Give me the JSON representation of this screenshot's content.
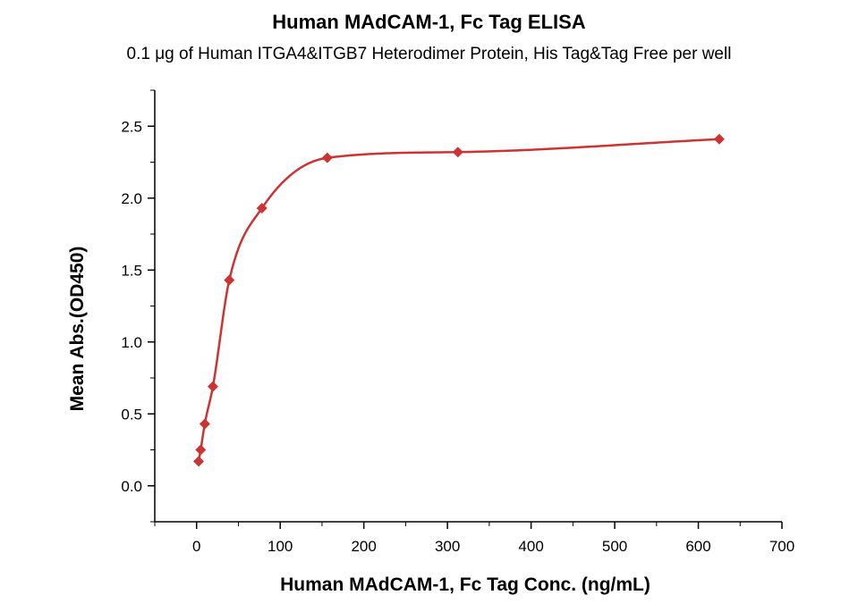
{
  "chart_data": {
    "type": "scatter",
    "title": "Human MAdCAM-1, Fc Tag ELISA",
    "subtitle": "0.1 μg of Human ITGA4&ITGB7 Heterodimer Protein, His Tag&Tag Free per well",
    "xlabel": "Human MAdCAM-1, Fc Tag Conc. (ng/mL)",
    "ylabel": "Mean Abs.(OD450)",
    "xlim": [
      -50,
      700
    ],
    "ylim": [
      -0.25,
      2.75
    ],
    "xticks": [
      "0",
      "100",
      "200",
      "300",
      "400",
      "500",
      "600",
      "700"
    ],
    "yticks": [
      "0.0",
      "0.5",
      "1.0",
      "1.5",
      "2.0",
      "2.5"
    ],
    "grid": false,
    "color": "#cc3333",
    "series": [
      {
        "x": [
          2.44,
          4.88,
          9.77,
          19.5,
          39.1,
          78.1,
          156.3,
          312.5,
          625
        ],
        "values": [
          0.17,
          0.25,
          0.43,
          0.69,
          1.43,
          1.93,
          2.28,
          2.32,
          2.41
        ]
      }
    ]
  }
}
